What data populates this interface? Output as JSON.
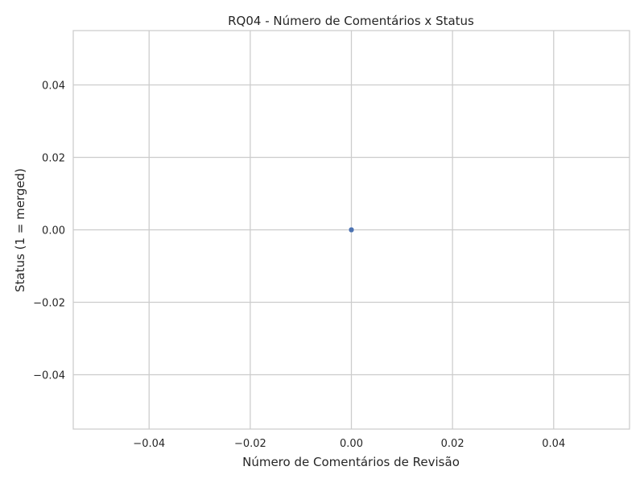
{
  "chart_data": {
    "type": "scatter",
    "title": "RQ04 - Número de Comentários x Status",
    "xlabel": "Número de Comentários de Revisão",
    "ylabel": "Status (1 = merged)",
    "xlim": [
      -0.055,
      0.055
    ],
    "ylim": [
      -0.055,
      0.055
    ],
    "xticks": [
      -0.04,
      -0.02,
      0.0,
      0.02,
      0.04
    ],
    "yticks": [
      -0.04,
      -0.02,
      0.0,
      0.02,
      0.04
    ],
    "xtick_labels": [
      "−0.04",
      "−0.02",
      "0.00",
      "0.02",
      "0.04"
    ],
    "ytick_labels": [
      "−0.04",
      "−0.02",
      "0.00",
      "0.02",
      "0.04"
    ],
    "grid": true,
    "series": [
      {
        "points": [
          {
            "x": 0,
            "y": 0
          }
        ],
        "color": "#4c72b0"
      }
    ]
  }
}
